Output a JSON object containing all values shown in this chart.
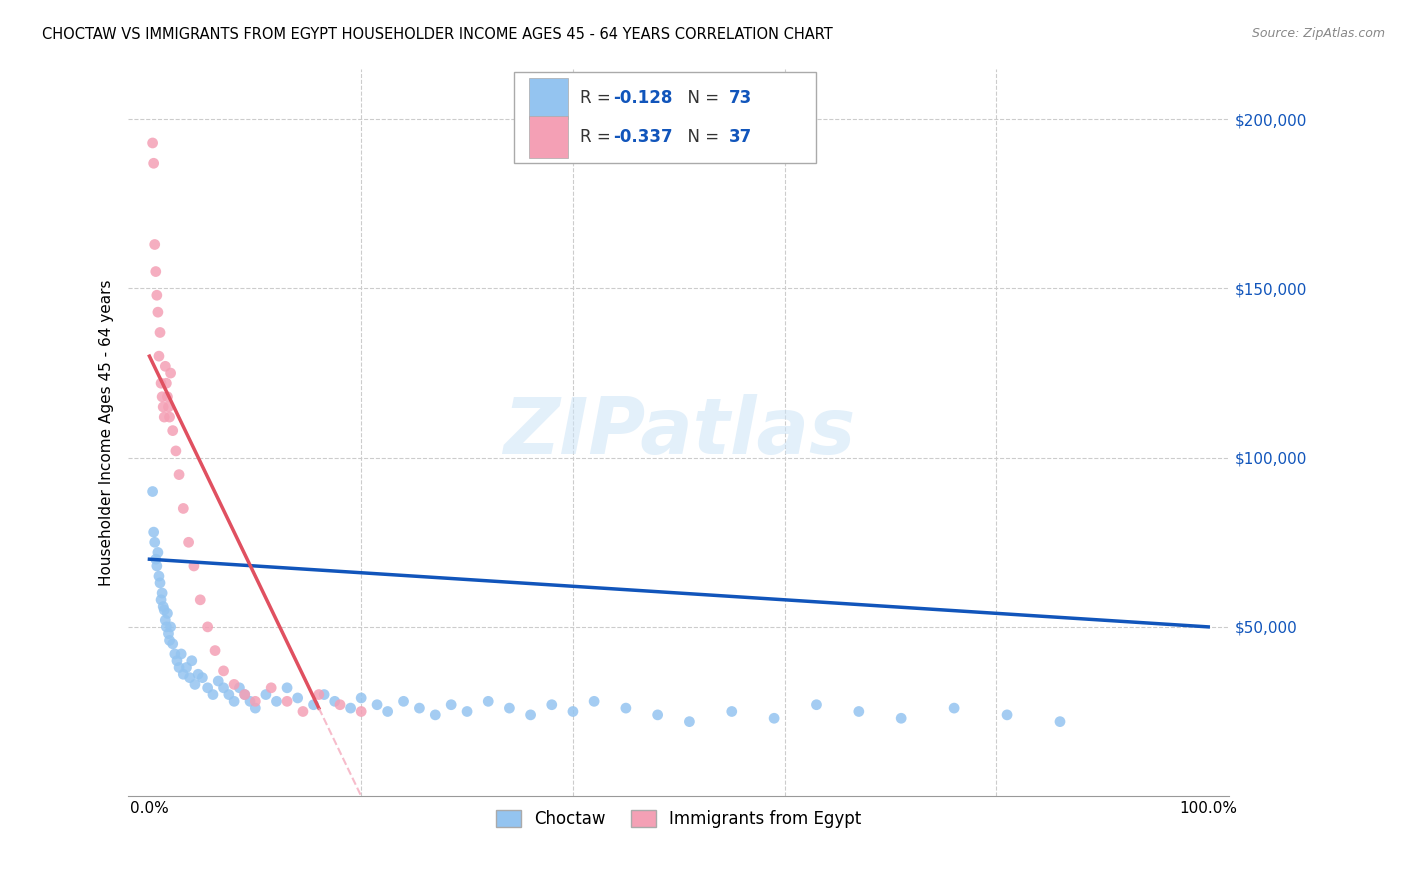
{
  "title": "CHOCTAW VS IMMIGRANTS FROM EGYPT HOUSEHOLDER INCOME AGES 45 - 64 YEARS CORRELATION CHART",
  "source": "Source: ZipAtlas.com",
  "ylabel": "Householder Income Ages 45 - 64 years",
  "r_choctaw": "-0.128",
  "n_choctaw": "73",
  "r_egypt": "-0.337",
  "n_egypt": "37",
  "color_choctaw": "#94C4F0",
  "color_egypt": "#F4A0B5",
  "line_color_choctaw": "#1155BB",
  "line_color_egypt": "#E05060",
  "line_color_egypt_dashed": "#F4A0B5",
  "background_color": "#FFFFFF",
  "choctaw_x": [
    0.003,
    0.004,
    0.005,
    0.006,
    0.007,
    0.008,
    0.009,
    0.01,
    0.011,
    0.012,
    0.013,
    0.014,
    0.015,
    0.016,
    0.017,
    0.018,
    0.019,
    0.02,
    0.022,
    0.024,
    0.026,
    0.028,
    0.03,
    0.032,
    0.035,
    0.038,
    0.04,
    0.043,
    0.046,
    0.05,
    0.055,
    0.06,
    0.065,
    0.07,
    0.075,
    0.08,
    0.085,
    0.09,
    0.095,
    0.1,
    0.11,
    0.12,
    0.13,
    0.14,
    0.155,
    0.165,
    0.175,
    0.19,
    0.2,
    0.215,
    0.225,
    0.24,
    0.255,
    0.27,
    0.285,
    0.3,
    0.32,
    0.34,
    0.36,
    0.38,
    0.4,
    0.42,
    0.45,
    0.48,
    0.51,
    0.55,
    0.59,
    0.63,
    0.67,
    0.71,
    0.76,
    0.81,
    0.86
  ],
  "choctaw_y": [
    90000,
    78000,
    75000,
    70000,
    68000,
    72000,
    65000,
    63000,
    58000,
    60000,
    56000,
    55000,
    52000,
    50000,
    54000,
    48000,
    46000,
    50000,
    45000,
    42000,
    40000,
    38000,
    42000,
    36000,
    38000,
    35000,
    40000,
    33000,
    36000,
    35000,
    32000,
    30000,
    34000,
    32000,
    30000,
    28000,
    32000,
    30000,
    28000,
    26000,
    30000,
    28000,
    32000,
    29000,
    27000,
    30000,
    28000,
    26000,
    29000,
    27000,
    25000,
    28000,
    26000,
    24000,
    27000,
    25000,
    28000,
    26000,
    24000,
    27000,
    25000,
    28000,
    26000,
    24000,
    22000,
    25000,
    23000,
    27000,
    25000,
    23000,
    26000,
    24000,
    22000
  ],
  "egypt_x": [
    0.003,
    0.004,
    0.005,
    0.006,
    0.007,
    0.008,
    0.009,
    0.01,
    0.011,
    0.012,
    0.013,
    0.014,
    0.015,
    0.016,
    0.017,
    0.018,
    0.019,
    0.02,
    0.022,
    0.025,
    0.028,
    0.032,
    0.037,
    0.042,
    0.048,
    0.055,
    0.062,
    0.07,
    0.08,
    0.09,
    0.1,
    0.115,
    0.13,
    0.145,
    0.16,
    0.18,
    0.2
  ],
  "egypt_y": [
    193000,
    187000,
    163000,
    155000,
    148000,
    143000,
    130000,
    137000,
    122000,
    118000,
    115000,
    112000,
    127000,
    122000,
    118000,
    115000,
    112000,
    125000,
    108000,
    102000,
    95000,
    85000,
    75000,
    68000,
    58000,
    50000,
    43000,
    37000,
    33000,
    30000,
    28000,
    32000,
    28000,
    25000,
    30000,
    27000,
    25000
  ],
  "xlim": [
    -0.02,
    1.02
  ],
  "ylim": [
    0,
    215000
  ],
  "yticks": [
    50000,
    100000,
    150000,
    200000
  ],
  "ytick_labels": [
    "$50,000",
    "$100,000",
    "$150,000",
    "$200,000"
  ]
}
